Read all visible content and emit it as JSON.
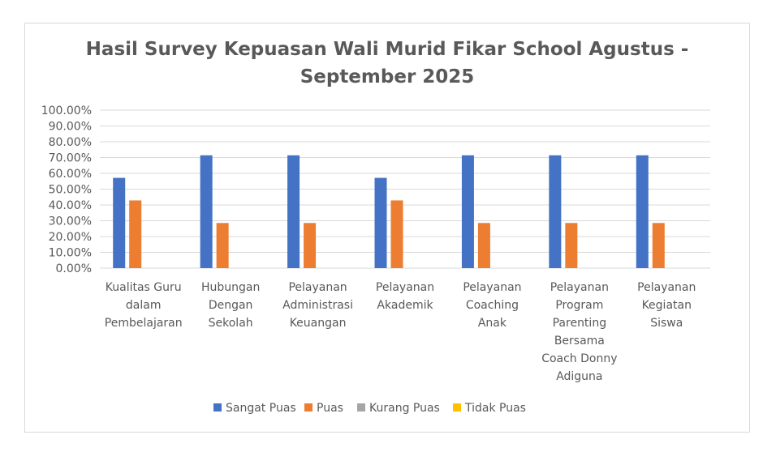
{
  "chart_data": {
    "type": "bar",
    "title": "Hasil Survey Kepuasan Wali Murid Fikar School Agustus - September 2025",
    "title_lines": [
      "Hasil Survey Kepuasan Wali Murid Fikar School Agustus -",
      "September 2025"
    ],
    "categories": [
      [
        "Kualitas Guru",
        "dalam",
        "Pembelajaran"
      ],
      [
        "Hubungan",
        "Dengan",
        "Sekolah"
      ],
      [
        "Pelayanan",
        "Administrasi",
        "Keuangan"
      ],
      [
        "Pelayanan",
        "Akademik"
      ],
      [
        "Pelayanan",
        "Coaching",
        "Anak"
      ],
      [
        "Pelayanan",
        "Program",
        "Parenting",
        "Bersama",
        "Coach Donny",
        "Adiguna"
      ],
      [
        "Pelayanan",
        "Kegiatan",
        "Siswa"
      ]
    ],
    "series": [
      {
        "name": "Sangat Puas",
        "color": "#4472c4",
        "values": [
          57.14,
          71.43,
          71.43,
          57.14,
          71.43,
          71.43,
          71.43
        ]
      },
      {
        "name": "Puas",
        "color": "#ed7d31",
        "values": [
          42.86,
          28.57,
          28.57,
          42.86,
          28.57,
          28.57,
          28.57
        ]
      },
      {
        "name": "Kurang Puas",
        "color": "#a5a5a5",
        "values": [
          0,
          0,
          0,
          0,
          0,
          0,
          0
        ]
      },
      {
        "name": "Tidak Puas",
        "color": "#ffc000",
        "values": [
          0,
          0,
          0,
          0,
          0,
          0,
          0
        ]
      }
    ],
    "ylim": [
      0,
      100
    ],
    "yticks": [
      "0.00%",
      "10.00%",
      "20.00%",
      "30.00%",
      "40.00%",
      "50.00%",
      "60.00%",
      "70.00%",
      "80.00%",
      "90.00%",
      "100.00%"
    ],
    "xlabel": "",
    "ylabel": "",
    "grid": true,
    "legend": "bottom"
  }
}
